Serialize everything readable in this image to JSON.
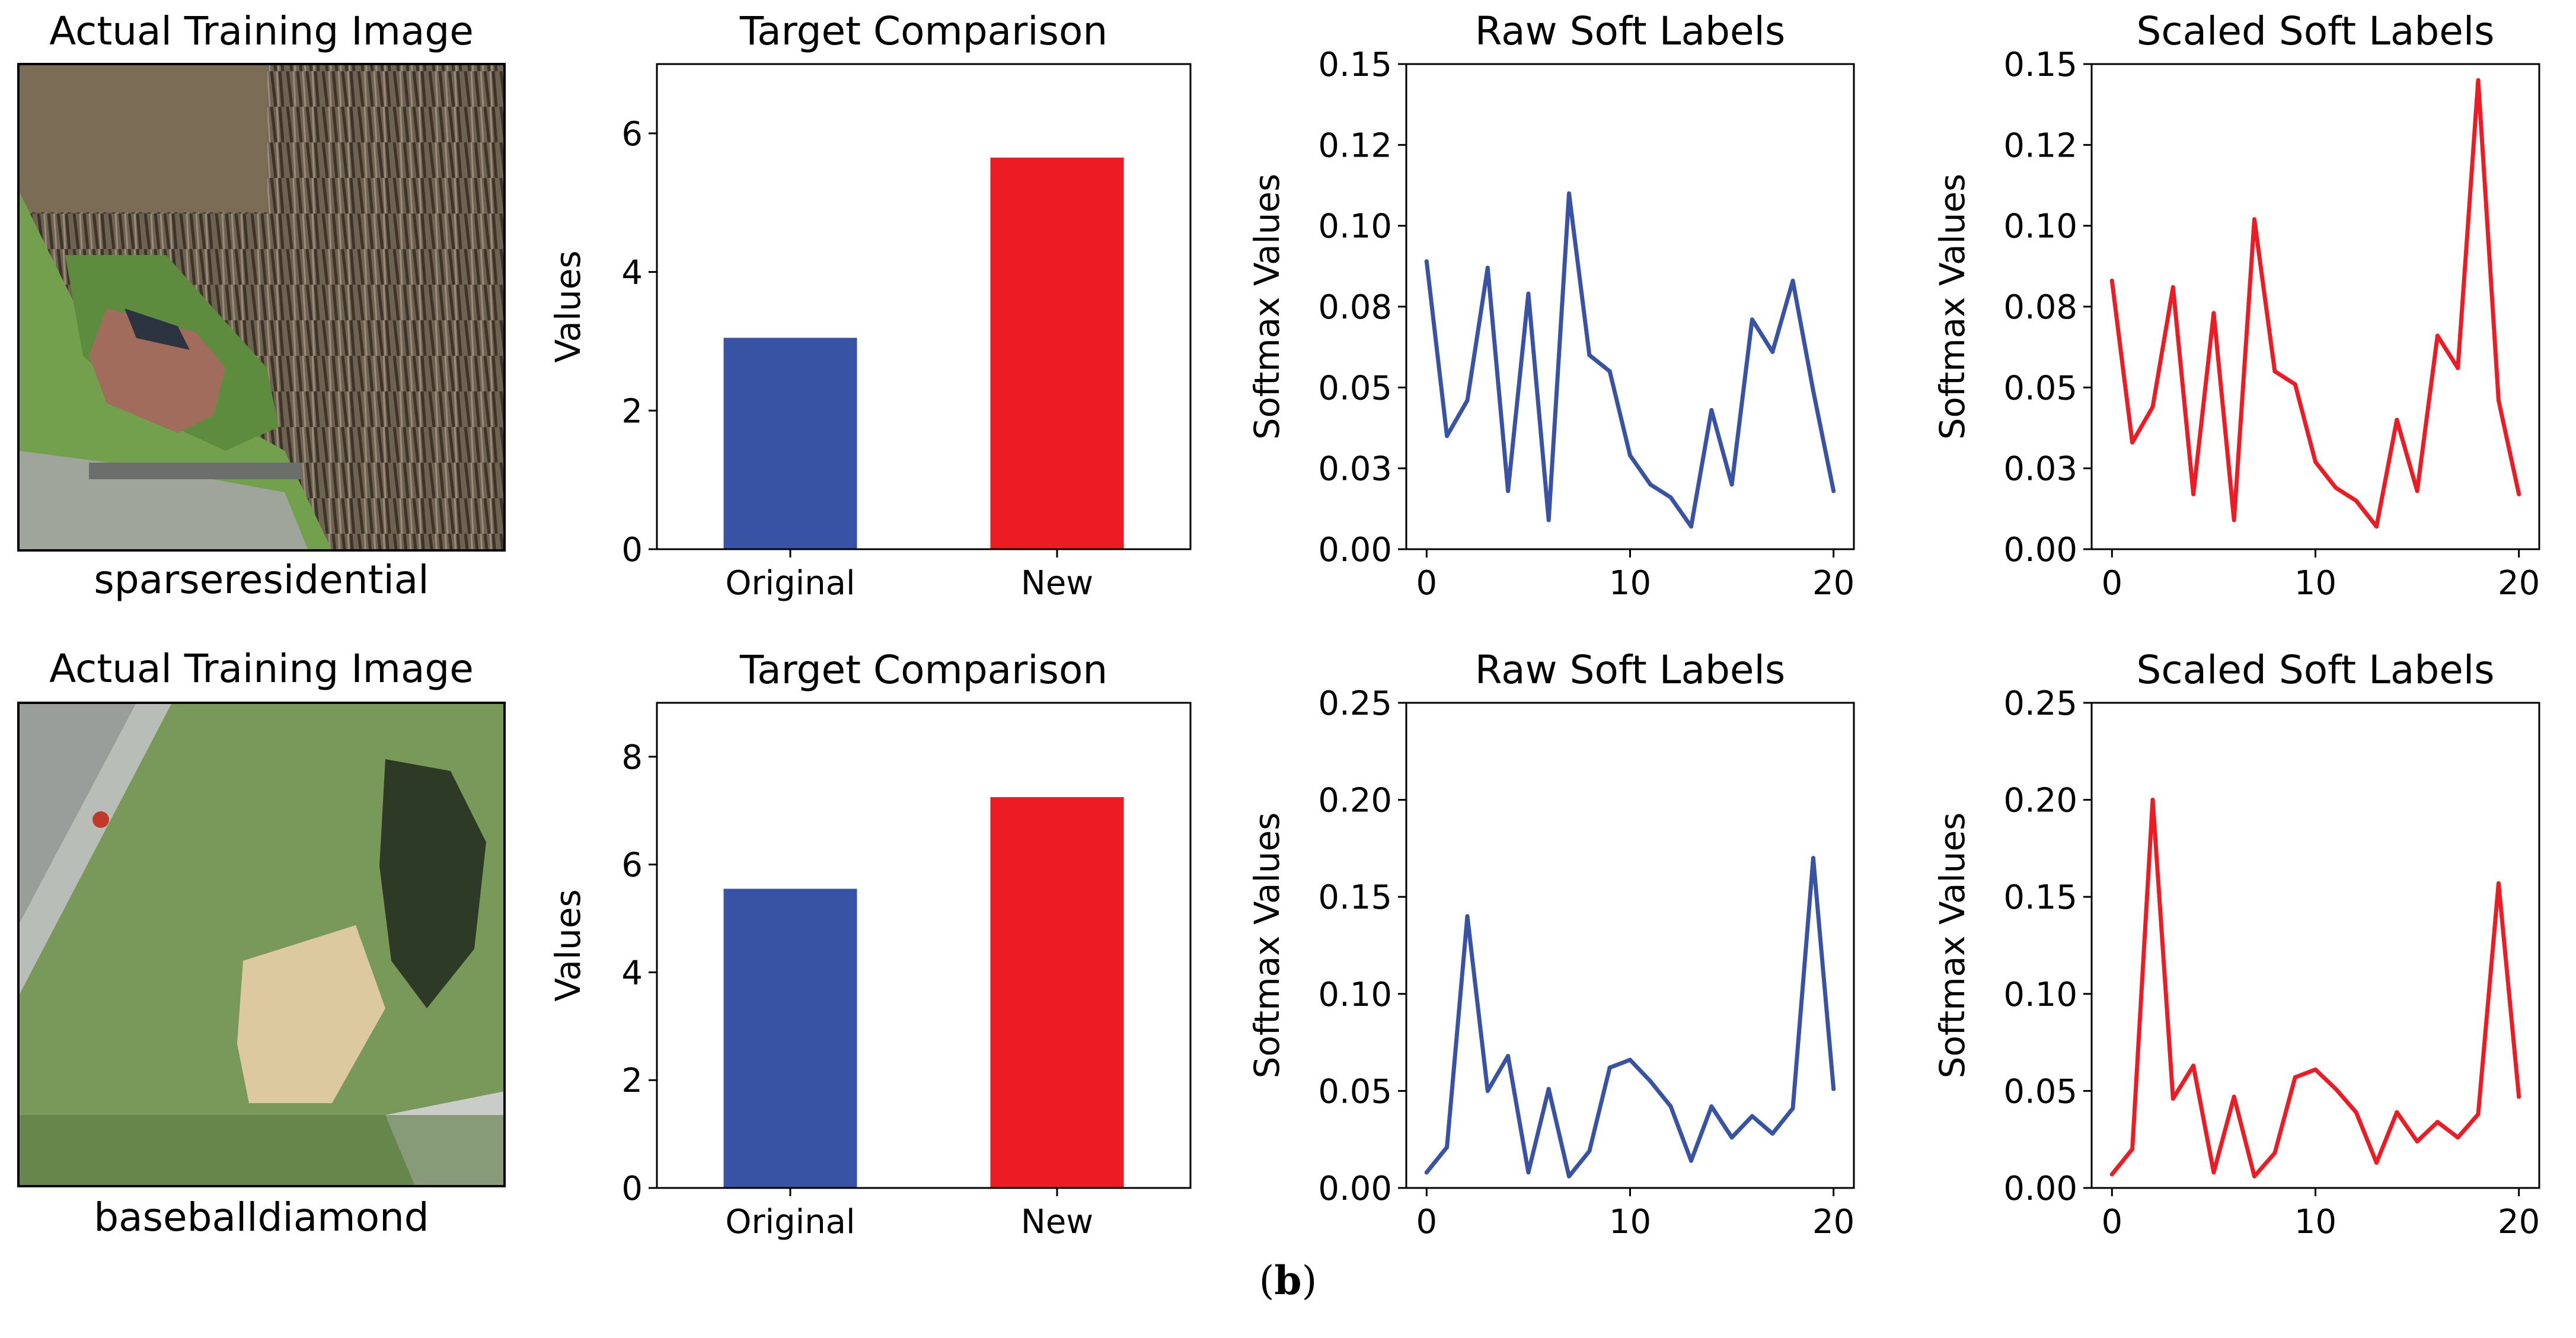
{
  "caption": {
    "open": "(",
    "letter": "b",
    "close": ")"
  },
  "colors": {
    "blue": "#3853a4",
    "red": "#ed1c24",
    "axis": "#000000",
    "text": "#000000"
  },
  "rows": [
    {
      "image_panel": {
        "title": "Actual Training Image",
        "label": "sparseresidential"
      },
      "chart_data": [
        {
          "type": "bar",
          "title": "Target Comparison",
          "xlabel": "",
          "ylabel": "Values",
          "categories": [
            "Original",
            "New"
          ],
          "values": [
            3.05,
            5.65
          ],
          "ylim": [
            0,
            7
          ],
          "yticks": [
            0,
            2,
            4,
            6
          ],
          "ytick_labels": [
            "0",
            "2",
            "4",
            "6"
          ],
          "colors": [
            "#3853a4",
            "#ed1c24"
          ]
        },
        {
          "type": "line",
          "title": "Raw Soft Labels",
          "xlabel": "",
          "ylabel": "Softmax Values",
          "x": [
            0,
            1,
            2,
            3,
            4,
            5,
            6,
            7,
            8,
            9,
            10,
            11,
            12,
            13,
            14,
            15,
            16,
            17,
            18,
            19,
            20
          ],
          "series": [
            {
              "name": "raw",
              "color": "#3853a4",
              "values": [
                0.089,
                0.035,
                0.046,
                0.087,
                0.018,
                0.079,
                0.009,
                0.11,
                0.06,
                0.055,
                0.029,
                0.02,
                0.016,
                0.007,
                0.043,
                0.02,
                0.071,
                0.061,
                0.083,
                0.049,
                0.018
              ]
            }
          ],
          "xlim": [
            -1,
            21
          ],
          "ylim": [
            0,
            0.15
          ],
          "xticks": [
            0,
            10,
            20
          ],
          "xtick_labels": [
            "0",
            "10",
            "20"
          ],
          "yticks": [
            0,
            0.025,
            0.05,
            0.075,
            0.1,
            0.125,
            0.15
          ],
          "ytick_labels": [
            "0.00",
            "0.03",
            "0.05",
            "0.08",
            "0.10",
            "0.12",
            "0.15"
          ]
        },
        {
          "type": "line",
          "title": "Scaled Soft Labels",
          "xlabel": "",
          "ylabel": "Softmax Values",
          "x": [
            0,
            1,
            2,
            3,
            4,
            5,
            6,
            7,
            8,
            9,
            10,
            11,
            12,
            13,
            14,
            15,
            16,
            17,
            18,
            19,
            20
          ],
          "series": [
            {
              "name": "scaled",
              "color": "#ed1c24",
              "values": [
                0.083,
                0.033,
                0.044,
                0.081,
                0.017,
                0.073,
                0.009,
                0.102,
                0.055,
                0.051,
                0.027,
                0.019,
                0.015,
                0.007,
                0.04,
                0.018,
                0.066,
                0.056,
                0.145,
                0.046,
                0.017
              ]
            }
          ],
          "xlim": [
            -1,
            21
          ],
          "ylim": [
            0,
            0.15
          ],
          "xticks": [
            0,
            10,
            20
          ],
          "xtick_labels": [
            "0",
            "10",
            "20"
          ],
          "yticks": [
            0,
            0.025,
            0.05,
            0.075,
            0.1,
            0.125,
            0.15
          ],
          "ytick_labels": [
            "0.00",
            "0.03",
            "0.05",
            "0.08",
            "0.10",
            "0.12",
            "0.15"
          ]
        }
      ]
    },
    {
      "image_panel": {
        "title": "Actual Training Image",
        "label": "baseballdiamond"
      },
      "chart_data": [
        {
          "type": "bar",
          "title": "Target Comparison",
          "xlabel": "",
          "ylabel": "Values",
          "categories": [
            "Original",
            "New"
          ],
          "values": [
            5.55,
            7.25
          ],
          "ylim": [
            0,
            9
          ],
          "yticks": [
            0,
            2,
            4,
            6,
            8
          ],
          "ytick_labels": [
            "0",
            "2",
            "4",
            "6",
            "8"
          ],
          "colors": [
            "#3853a4",
            "#ed1c24"
          ]
        },
        {
          "type": "line",
          "title": "Raw Soft Labels",
          "xlabel": "",
          "ylabel": "Softmax Values",
          "x": [
            0,
            1,
            2,
            3,
            4,
            5,
            6,
            7,
            8,
            9,
            10,
            11,
            12,
            13,
            14,
            15,
            16,
            17,
            18,
            19,
            20
          ],
          "series": [
            {
              "name": "raw",
              "color": "#3853a4",
              "values": [
                0.008,
                0.021,
                0.14,
                0.05,
                0.068,
                0.008,
                0.051,
                0.006,
                0.019,
                0.062,
                0.066,
                0.055,
                0.042,
                0.014,
                0.042,
                0.026,
                0.037,
                0.028,
                0.041,
                0.17,
                0.051
              ]
            }
          ],
          "xlim": [
            -1,
            21
          ],
          "ylim": [
            0,
            0.25
          ],
          "xticks": [
            0,
            10,
            20
          ],
          "xtick_labels": [
            "0",
            "10",
            "20"
          ],
          "yticks": [
            0,
            0.05,
            0.1,
            0.15,
            0.2,
            0.25
          ],
          "ytick_labels": [
            "0.00",
            "0.05",
            "0.10",
            "0.15",
            "0.20",
            "0.25"
          ]
        },
        {
          "type": "line",
          "title": "Scaled Soft Labels",
          "xlabel": "",
          "ylabel": "Softmax Values",
          "x": [
            0,
            1,
            2,
            3,
            4,
            5,
            6,
            7,
            8,
            9,
            10,
            11,
            12,
            13,
            14,
            15,
            16,
            17,
            18,
            19,
            20
          ],
          "series": [
            {
              "name": "scaled",
              "color": "#ed1c24",
              "values": [
                0.007,
                0.02,
                0.2,
                0.046,
                0.063,
                0.008,
                0.047,
                0.006,
                0.018,
                0.057,
                0.061,
                0.051,
                0.039,
                0.013,
                0.039,
                0.024,
                0.034,
                0.026,
                0.038,
                0.157,
                0.047
              ]
            }
          ],
          "xlim": [
            -1,
            21
          ],
          "ylim": [
            0,
            0.25
          ],
          "xticks": [
            0,
            10,
            20
          ],
          "xtick_labels": [
            "0",
            "10",
            "20"
          ],
          "yticks": [
            0,
            0.05,
            0.1,
            0.15,
            0.2,
            0.25
          ],
          "ytick_labels": [
            "0.00",
            "0.05",
            "0.10",
            "0.15",
            "0.20",
            "0.25"
          ]
        }
      ]
    }
  ],
  "images": [
    {
      "name": "aerial-image-sparseresidential",
      "palette": "residential"
    },
    {
      "name": "aerial-image-baseballdiamond",
      "palette": "baseball"
    }
  ]
}
